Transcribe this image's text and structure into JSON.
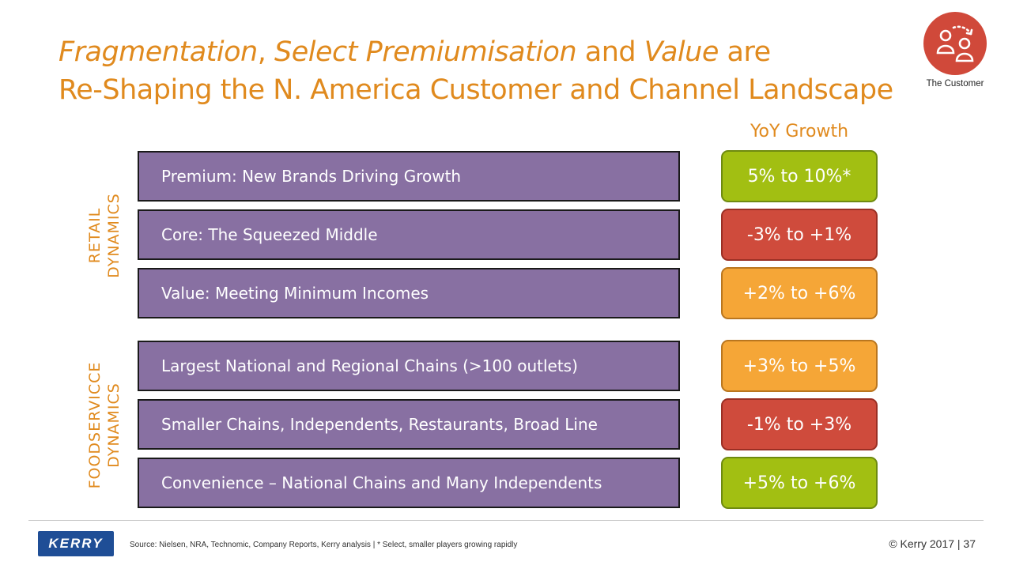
{
  "title": {
    "line1": [
      {
        "text": "Fragmentation",
        "italic": true
      },
      {
        "text": ", ",
        "italic": false
      },
      {
        "text": "Select Premiumisation",
        "italic": true
      },
      {
        "text": " and ",
        "italic": false
      },
      {
        "text": "Value",
        "italic": true
      },
      {
        "text": " are",
        "italic": false
      }
    ],
    "line2": "Re-Shaping the N. America Customer and Channel Landscape"
  },
  "badge": {
    "icon": "people-icon",
    "label": "The Customer",
    "color": "#d0493a"
  },
  "yoy_header": "YoY Growth",
  "sections": {
    "retail": {
      "line1": "RETAIL",
      "line2": "DYNAMICS"
    },
    "foodservice": {
      "line1": "FOODSERVICCE",
      "line2": "DYNAMICS"
    }
  },
  "rows": [
    {
      "label": "Premium:  New Brands Driving Growth",
      "growth": "5% to 10%*",
      "status": "green"
    },
    {
      "label": "Core: The Squeezed Middle",
      "growth": "-3% to +1%",
      "status": "red"
    },
    {
      "label": "Value: Meeting Minimum Incomes",
      "growth": "+2% to +6%",
      "status": "orange"
    },
    {
      "label": "Largest National and Regional Chains (>100 outlets)",
      "growth": "+3% to +5%",
      "status": "orange"
    },
    {
      "label": "Smaller Chains, Independents, Restaurants, Broad Line",
      "growth": "-1% to +3%",
      "status": "red"
    },
    {
      "label": "Convenience – National Chains and Many Independents",
      "growth": "+5% to +6%",
      "status": "green"
    }
  ],
  "footer": {
    "logo": "KERRY",
    "source": "Source:  Nielsen, NRA, Technomic, Company Reports, Kerry analysis   |  * Select, smaller players growing rapidly",
    "copyright": "© Kerry 2017 | 37"
  },
  "colors": {
    "accent": "#e08a1e",
    "row_fill": "#8870a2",
    "green": "#a2bf12",
    "red": "#cf4b3c",
    "orange": "#f5a637",
    "logo": "#1f4e96"
  }
}
